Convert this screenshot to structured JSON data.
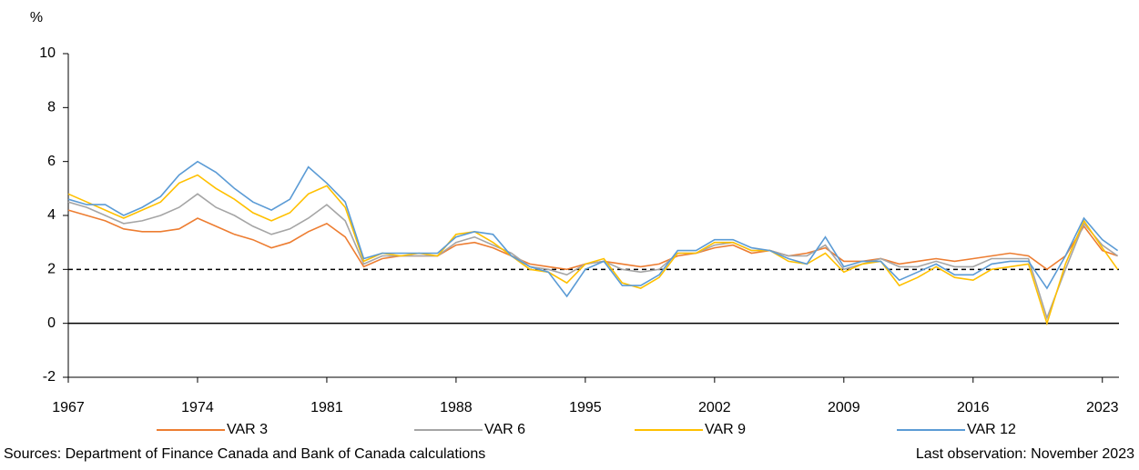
{
  "chart_data": {
    "type": "line",
    "y_label": "%",
    "x": [
      1967,
      1968,
      1969,
      1970,
      1971,
      1972,
      1973,
      1974,
      1975,
      1976,
      1977,
      1978,
      1979,
      1980,
      1981,
      1982,
      1983,
      1984,
      1985,
      1986,
      1987,
      1988,
      1989,
      1990,
      1991,
      1992,
      1993,
      1994,
      1995,
      1996,
      1997,
      1998,
      1999,
      2000,
      2001,
      2002,
      2003,
      2004,
      2005,
      2006,
      2007,
      2008,
      2009,
      2010,
      2011,
      2012,
      2013,
      2014,
      2015,
      2016,
      2017,
      2018,
      2019,
      2020,
      2021,
      2022,
      2023,
      2023.83
    ],
    "series": [
      {
        "name": "VAR 3",
        "color": "#ed7d31",
        "values": [
          4.2,
          4.0,
          3.8,
          3.5,
          3.4,
          3.4,
          3.5,
          3.9,
          3.6,
          3.3,
          3.1,
          2.8,
          3.0,
          3.4,
          3.7,
          3.2,
          2.1,
          2.4,
          2.5,
          2.5,
          2.5,
          2.9,
          3.0,
          2.8,
          2.5,
          2.2,
          2.1,
          2.0,
          2.2,
          2.3,
          2.2,
          2.1,
          2.2,
          2.5,
          2.6,
          2.8,
          2.9,
          2.6,
          2.7,
          2.5,
          2.6,
          2.8,
          2.3,
          2.3,
          2.4,
          2.2,
          2.3,
          2.4,
          2.3,
          2.4,
          2.5,
          2.6,
          2.5,
          2.0,
          2.5,
          3.6,
          2.7,
          2.5
        ]
      },
      {
        "name": "VAR 6",
        "color": "#a5a5a5",
        "values": [
          4.5,
          4.3,
          4.0,
          3.7,
          3.8,
          4.0,
          4.3,
          4.8,
          4.3,
          4.0,
          3.6,
          3.3,
          3.5,
          3.9,
          4.4,
          3.8,
          2.2,
          2.5,
          2.5,
          2.5,
          2.5,
          3.0,
          3.2,
          2.9,
          2.6,
          2.1,
          2.0,
          1.8,
          2.2,
          2.3,
          2.0,
          1.9,
          2.0,
          2.6,
          2.6,
          2.9,
          3.0,
          2.7,
          2.7,
          2.5,
          2.5,
          2.9,
          2.0,
          2.2,
          2.4,
          2.1,
          2.1,
          2.3,
          2.1,
          2.1,
          2.4,
          2.4,
          2.4,
          0.2,
          2.0,
          3.7,
          2.9,
          2.5
        ]
      },
      {
        "name": "VAR 9",
        "color": "#ffc000",
        "values": [
          4.8,
          4.5,
          4.2,
          3.9,
          4.2,
          4.5,
          5.2,
          5.5,
          5.0,
          4.6,
          4.1,
          3.8,
          4.1,
          4.8,
          5.1,
          4.3,
          2.3,
          2.6,
          2.5,
          2.6,
          2.5,
          3.3,
          3.4,
          3.0,
          2.5,
          2.0,
          1.9,
          1.5,
          2.2,
          2.4,
          1.5,
          1.3,
          1.7,
          2.6,
          2.6,
          3.0,
          3.0,
          2.7,
          2.7,
          2.3,
          2.2,
          2.6,
          1.9,
          2.2,
          2.3,
          1.4,
          1.7,
          2.1,
          1.7,
          1.6,
          2.0,
          2.1,
          2.2,
          0.0,
          2.2,
          3.8,
          2.8,
          2.0
        ]
      },
      {
        "name": "VAR 12",
        "color": "#5b9bd5",
        "values": [
          4.6,
          4.4,
          4.4,
          4.0,
          4.3,
          4.7,
          5.5,
          6.0,
          5.6,
          5.0,
          4.5,
          4.2,
          4.6,
          5.8,
          5.2,
          4.5,
          2.4,
          2.6,
          2.6,
          2.6,
          2.6,
          3.2,
          3.4,
          3.3,
          2.5,
          2.1,
          1.9,
          1.0,
          2.0,
          2.3,
          1.4,
          1.4,
          1.8,
          2.7,
          2.7,
          3.1,
          3.1,
          2.8,
          2.7,
          2.4,
          2.2,
          3.2,
          2.1,
          2.3,
          2.3,
          1.6,
          1.9,
          2.2,
          1.8,
          1.8,
          2.2,
          2.3,
          2.3,
          1.3,
          2.5,
          3.9,
          3.1,
          2.7
        ]
      }
    ],
    "xlim": [
      1967,
      2023.9
    ],
    "xticks": [
      1967,
      1974,
      1981,
      1988,
      1995,
      2002,
      2009,
      2016,
      2023
    ],
    "ylim": [
      -2,
      10
    ],
    "yticks": [
      -2,
      0,
      2,
      4,
      6,
      8,
      10
    ],
    "reference_line": 2,
    "legend": "bottom",
    "source": "Sources: Department of Finance Canada and Bank of Canada calculations",
    "note": "Last observation: November 2023"
  }
}
